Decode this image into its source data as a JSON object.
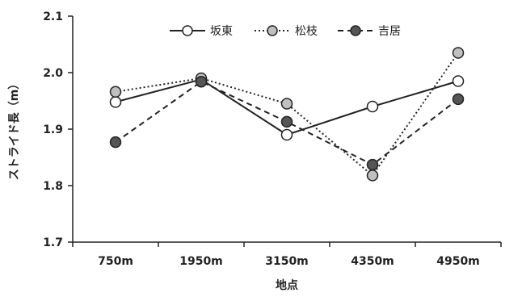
{
  "chart_data": {
    "type": "line",
    "title": "",
    "xlabel": "地点",
    "ylabel": "ストライド長（m）",
    "categories": [
      "750m",
      "1950m",
      "3150m",
      "4350m",
      "4950m"
    ],
    "ylim": [
      1.7,
      2.1
    ],
    "yticks": [
      "1.7",
      "1.8",
      "1.9",
      "2.0",
      "2.1"
    ],
    "grid": false,
    "legend_position": "top",
    "series": [
      {
        "name": "坂東",
        "values": [
          1.948,
          1.988,
          1.89,
          1.94,
          1.985
        ],
        "line": "solid",
        "marker_fill": "#ffffff"
      },
      {
        "name": "松枝",
        "values": [
          1.966,
          1.99,
          1.945,
          1.818,
          2.035
        ],
        "line": "dotted",
        "marker_fill": "#c0c0c0"
      },
      {
        "name": "吉居",
        "values": [
          1.877,
          1.984,
          1.913,
          1.837,
          1.953
        ],
        "line": "dashed",
        "marker_fill": "#555555"
      }
    ]
  }
}
